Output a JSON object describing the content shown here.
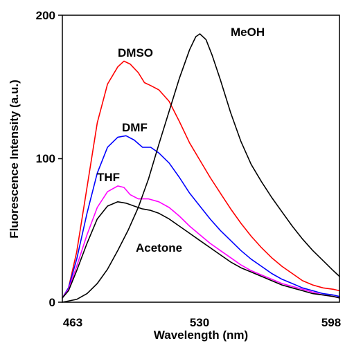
{
  "chart_data": {
    "type": "line",
    "xlabel": "Wavelength (nm)",
    "ylabel": "Fluorescence Intensity (a.u.)",
    "xlim": [
      463,
      598
    ],
    "ylim": [
      0,
      200
    ],
    "x_ticks": [
      "463",
      "530",
      "598"
    ],
    "y_ticks": [
      "0",
      "100",
      "200"
    ],
    "x_tick_values": [
      463,
      530,
      598
    ],
    "y_tick_values": [
      0,
      100,
      200
    ],
    "grid": false,
    "legend": "inline labels",
    "series": [
      {
        "name": "DMSO",
        "color": "#ff0000",
        "x": [
          463,
          466,
          470,
          475,
          480,
          485,
          490,
          493,
          496,
          500,
          503,
          506,
          510,
          515,
          520,
          525,
          530,
          535,
          540,
          545,
          550,
          555,
          560,
          565,
          570,
          575,
          580,
          585,
          590,
          595,
          598
        ],
        "y": [
          3,
          10,
          35,
          80,
          125,
          152,
          164,
          168,
          166,
          160,
          153,
          151,
          148,
          140,
          126,
          111,
          99,
          87,
          76,
          65,
          55,
          46,
          38,
          31,
          25,
          20,
          15,
          12,
          10,
          9,
          8
        ]
      },
      {
        "name": "DMF",
        "color": "#0000ff",
        "x": [
          463,
          466,
          470,
          475,
          480,
          485,
          490,
          494,
          498,
          502,
          506,
          510,
          515,
          520,
          525,
          530,
          535,
          540,
          545,
          550,
          555,
          560,
          565,
          570,
          575,
          580,
          585,
          590,
          595,
          598
        ],
        "y": [
          3,
          10,
          30,
          62,
          90,
          108,
          115,
          116,
          113,
          108,
          108,
          104,
          97,
          87,
          76,
          67,
          58,
          50,
          43,
          36,
          30,
          25,
          20,
          16,
          13,
          10,
          8,
          6,
          5,
          4
        ]
      },
      {
        "name": "THF",
        "color": "#ff00ff",
        "x": [
          463,
          466,
          470,
          475,
          480,
          485,
          490,
          493,
          496,
          500,
          505,
          510,
          515,
          520,
          525,
          530,
          535,
          540,
          545,
          550,
          555,
          560,
          565,
          570,
          575,
          580,
          585,
          590,
          595,
          598
        ],
        "y": [
          3,
          9,
          25,
          47,
          66,
          77,
          81,
          80,
          75,
          72,
          72,
          70,
          66,
          60,
          53,
          47,
          41,
          36,
          31,
          26,
          22,
          19,
          16,
          13,
          11,
          9,
          7,
          5,
          4,
          3
        ]
      },
      {
        "name": "Acetone",
        "color": "#000000",
        "x": [
          463,
          466,
          470,
          475,
          480,
          485,
          490,
          494,
          498,
          502,
          506,
          510,
          515,
          520,
          525,
          530,
          535,
          540,
          545,
          550,
          555,
          560,
          565,
          570,
          575,
          580,
          585,
          590,
          595,
          598
        ],
        "y": [
          3,
          8,
          22,
          41,
          58,
          67,
          70,
          69,
          67,
          65,
          64,
          62,
          58,
          53,
          48,
          43,
          38,
          33,
          28,
          24,
          21,
          18,
          15,
          12,
          10,
          8,
          6,
          5,
          4,
          3
        ]
      },
      {
        "name": "MeOH",
        "color": "#000000",
        "x": [
          463,
          470,
          475,
          480,
          485,
          490,
          495,
          500,
          505,
          510,
          515,
          520,
          525,
          528,
          530,
          533,
          536,
          540,
          545,
          550,
          555,
          560,
          565,
          570,
          575,
          580,
          585,
          590,
          595,
          598
        ],
        "y": [
          0,
          2,
          6,
          13,
          23,
          36,
          50,
          66,
          86,
          110,
          133,
          156,
          176,
          185,
          187,
          183,
          172,
          155,
          132,
          112,
          96,
          84,
          73,
          63,
          53,
          44,
          36,
          29,
          22,
          18
        ]
      }
    ]
  }
}
